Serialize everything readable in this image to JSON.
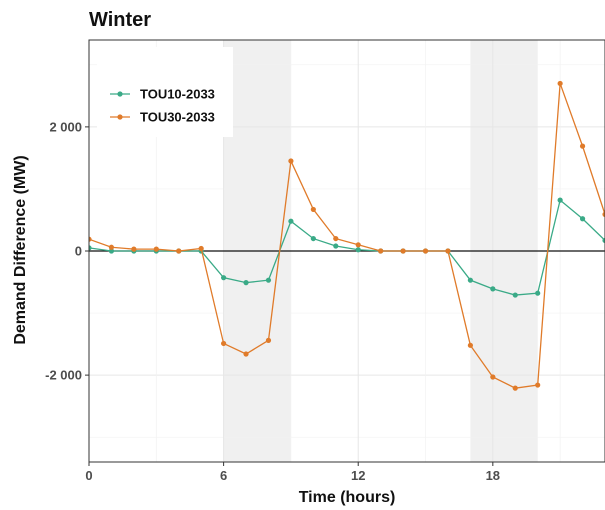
{
  "chart_data": {
    "type": "line",
    "title": "Winter",
    "xlabel": "Time (hours)",
    "ylabel": "Demand Difference (MW)",
    "xlim": [
      0,
      23
    ],
    "ylim": [
      -3400,
      3400
    ],
    "x_ticks": [
      {
        "value": 0,
        "label": "0"
      },
      {
        "value": 6,
        "label": "6"
      },
      {
        "value": 12,
        "label": "12"
      },
      {
        "value": 18,
        "label": "18"
      }
    ],
    "y_ticks": [
      {
        "value": 2000,
        "label": "2 000"
      },
      {
        "value": 0,
        "label": "0"
      },
      {
        "value": -2000,
        "label": "-2 000"
      }
    ],
    "shaded_ranges": [
      [
        6,
        9
      ],
      [
        17,
        20
      ]
    ],
    "zero_line": true,
    "grid": true,
    "legend_position": "top-left",
    "x": [
      0,
      1,
      2,
      3,
      4,
      5,
      6,
      7,
      8,
      9,
      10,
      11,
      12,
      13,
      14,
      15,
      16,
      17,
      18,
      19,
      20,
      21,
      22,
      23
    ],
    "series": [
      {
        "name": "TOU10-2033",
        "color": "#3aaa87",
        "values": [
          50,
          0,
          0,
          0,
          0,
          0,
          -430,
          -510,
          -470,
          480,
          200,
          80,
          20,
          0,
          0,
          0,
          0,
          -470,
          -610,
          -710,
          -680,
          820,
          520,
          170
        ]
      },
      {
        "name": "TOU30-2033",
        "color": "#e07b2a",
        "values": [
          190,
          60,
          30,
          30,
          0,
          40,
          -1490,
          -1660,
          -1440,
          1450,
          670,
          200,
          100,
          0,
          0,
          0,
          0,
          -1520,
          -2030,
          -2210,
          -2160,
          2700,
          1690,
          590
        ]
      }
    ]
  }
}
